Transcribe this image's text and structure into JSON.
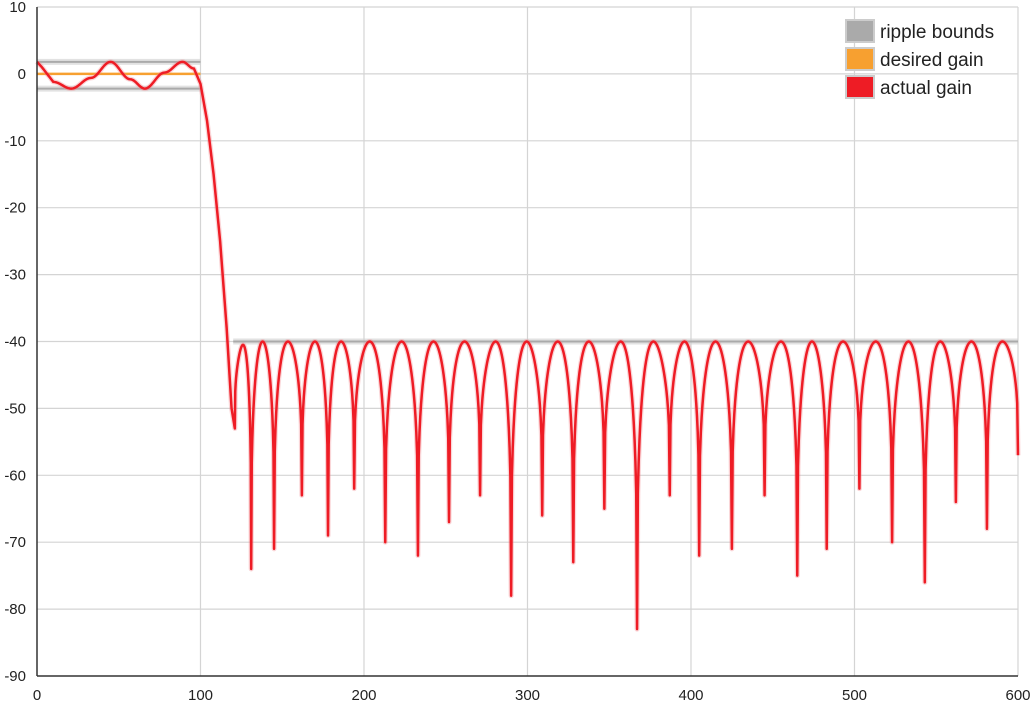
{
  "chart_data": {
    "type": "line",
    "title": "",
    "xlabel": "",
    "ylabel": "",
    "xlim": [
      0,
      600
    ],
    "ylim": [
      -90,
      10
    ],
    "x_ticks": [
      0,
      100,
      200,
      300,
      400,
      500,
      600
    ],
    "y_ticks": [
      10,
      0,
      -10,
      -20,
      -30,
      -40,
      -50,
      -60,
      -70,
      -80,
      -90
    ],
    "grid": true,
    "legend_position": "top-right",
    "series": [
      {
        "name": "ripple bounds",
        "color": "#aaaaaa",
        "segments": [
          {
            "x": [
              0,
              100
            ],
            "y": [
              1.8,
              1.8
            ]
          },
          {
            "x": [
              0,
              100
            ],
            "y": [
              -2.2,
              -2.2
            ]
          },
          {
            "x": [
              120,
              600
            ],
            "y": [
              -40,
              -40
            ]
          }
        ]
      },
      {
        "name": "desired gain",
        "color": "#f7a030",
        "segments": [
          {
            "x": [
              0,
              100
            ],
            "y": [
              0,
              0
            ]
          }
        ]
      },
      {
        "name": "actual gain",
        "color": "#ee1c25",
        "passband": {
          "x": [
            0,
            3,
            10,
            21,
            33,
            45,
            57,
            66,
            78,
            89,
            96,
            100,
            104,
            108,
            112,
            116,
            119,
            121
          ],
          "y": [
            1.8,
            1.0,
            -1.2,
            -2.2,
            -0.6,
            1.8,
            -0.8,
            -2.2,
            0.2,
            1.8,
            0.8,
            -1.5,
            -7,
            -15,
            -25,
            -38,
            -50,
            -53
          ]
        },
        "stopband_peaks": [
          -40.5,
          -40,
          -40,
          -40,
          -40,
          -40,
          -40,
          -40,
          -40,
          -40,
          -40,
          -40,
          -40,
          -40,
          -40,
          -40,
          -40,
          -40,
          -40,
          -40,
          -40,
          -40,
          -40,
          -40,
          -40,
          -40,
          -40,
          -40,
          -40,
          -40,
          -40
        ],
        "stopband_nulls": {
          "x": [
            121,
            131,
            145,
            162,
            178,
            194,
            213,
            233,
            252,
            271,
            290,
            309,
            328,
            347,
            367,
            387,
            405,
            425,
            445,
            465,
            483,
            503,
            523,
            543,
            562,
            581,
            600
          ],
          "y": [
            -53,
            -74,
            -71,
            -63,
            -69,
            -62,
            -70,
            -72,
            -67,
            -63,
            -78,
            -66,
            -73,
            -65,
            -83,
            -63,
            -72,
            -71,
            -63,
            -75,
            -71,
            -62,
            -70,
            -76,
            -64,
            -68,
            -57
          ]
        }
      }
    ]
  }
}
